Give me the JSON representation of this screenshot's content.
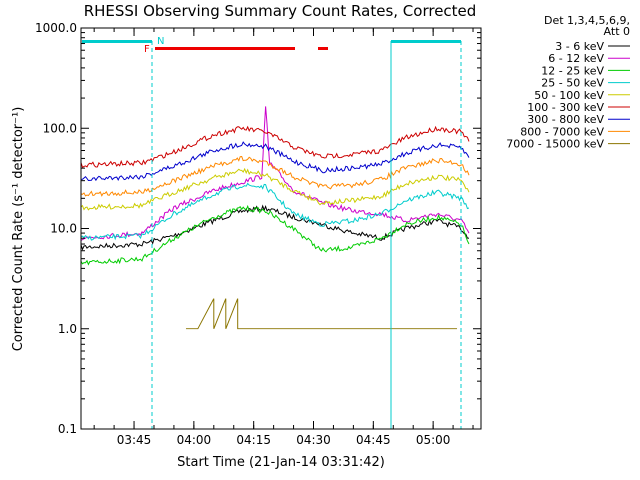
{
  "chart_data": {
    "type": "line",
    "title": "RHESSI Observing Summary Count Rates, Corrected",
    "xlabel": "Start Time (21-Jan-14 03:31:42)",
    "ylabel": "Corrected Count Rate (s⁻¹ detector⁻¹)",
    "y_scale": "log",
    "ylim": [
      0.1,
      1000.0
    ],
    "y_ticks": [
      "0.1",
      "1.0",
      "10.0",
      "100.0",
      "1000.0"
    ],
    "x_range": [
      "03:31:42",
      "05:12:00"
    ],
    "x_ticks": [
      "03:45",
      "04:00",
      "04:15",
      "04:30",
      "04:45",
      "05:00"
    ],
    "legend": {
      "header": [
        "Det 1,3,4,5,6,9,",
        "Att 0"
      ],
      "position": "right"
    },
    "series": [
      {
        "name": "3 - 6 keV",
        "color": "#000000",
        "points": [
          [
            "03:31:42",
            6.5
          ],
          [
            "03:47",
            7
          ],
          [
            "03:55",
            8.5
          ],
          [
            "04:05",
            12
          ],
          [
            "04:12",
            15
          ],
          [
            "04:18",
            16
          ],
          [
            "04:25",
            13
          ],
          [
            "04:32",
            11
          ],
          [
            "04:40",
            9
          ],
          [
            "04:47",
            8
          ],
          [
            "04:53",
            10
          ],
          [
            "05:01",
            12
          ],
          [
            "05:07",
            10
          ],
          [
            "05:09",
            8
          ]
        ]
      },
      {
        "name": "6 - 12 keV",
        "color": "#cc00cc",
        "points": [
          [
            "03:31:42",
            8
          ],
          [
            "03:47",
            9
          ],
          [
            "03:55",
            16
          ],
          [
            "04:05",
            24
          ],
          [
            "04:12",
            29
          ],
          [
            "04:17",
            33
          ],
          [
            "04:18",
            160
          ],
          [
            "04:19",
            45
          ],
          [
            "04:25",
            24
          ],
          [
            "04:32",
            18
          ],
          [
            "04:40",
            15
          ],
          [
            "04:47",
            14
          ],
          [
            "04:53",
            12
          ],
          [
            "05:01",
            14
          ],
          [
            "05:07",
            12
          ],
          [
            "05:09",
            9
          ]
        ]
      },
      {
        "name": "12 - 25 keV",
        "color": "#00cc00",
        "points": [
          [
            "03:31:42",
            4.5
          ],
          [
            "03:47",
            5
          ],
          [
            "03:55",
            8
          ],
          [
            "04:05",
            13
          ],
          [
            "04:12",
            16
          ],
          [
            "04:18",
            15
          ],
          [
            "04:25",
            10
          ],
          [
            "04:32",
            6
          ],
          [
            "04:40",
            6.5
          ],
          [
            "04:47",
            8
          ],
          [
            "04:53",
            11
          ],
          [
            "05:01",
            13
          ],
          [
            "05:07",
            11
          ],
          [
            "05:09",
            7
          ]
        ]
      },
      {
        "name": "25 - 50 keV",
        "color": "#00cccc",
        "points": [
          [
            "03:31:42",
            8
          ],
          [
            "03:47",
            8.5
          ],
          [
            "03:55",
            14
          ],
          [
            "04:05",
            22
          ],
          [
            "04:12",
            27
          ],
          [
            "04:18",
            26
          ],
          [
            "04:25",
            14
          ],
          [
            "04:32",
            11
          ],
          [
            "04:40",
            12
          ],
          [
            "04:47",
            14
          ],
          [
            "04:53",
            19
          ],
          [
            "05:01",
            23
          ],
          [
            "05:07",
            20
          ],
          [
            "05:09",
            16
          ]
        ]
      },
      {
        "name": "50 - 100 keV",
        "color": "#cccc00",
        "points": [
          [
            "03:31:42",
            16
          ],
          [
            "03:47",
            17
          ],
          [
            "03:55",
            23
          ],
          [
            "04:05",
            32
          ],
          [
            "04:12",
            38
          ],
          [
            "04:18",
            34
          ],
          [
            "04:25",
            24
          ],
          [
            "04:32",
            18
          ],
          [
            "04:40",
            19
          ],
          [
            "04:47",
            21
          ],
          [
            "04:53",
            28
          ],
          [
            "05:01",
            33
          ],
          [
            "05:07",
            30
          ],
          [
            "05:09",
            23
          ]
        ]
      },
      {
        "name": "100 - 300 keV",
        "color": "#cc0000",
        "points": [
          [
            "03:31:42",
            43
          ],
          [
            "03:47",
            45
          ],
          [
            "03:55",
            58
          ],
          [
            "04:05",
            86
          ],
          [
            "04:12",
            100
          ],
          [
            "04:18",
            92
          ],
          [
            "04:25",
            65
          ],
          [
            "04:32",
            52
          ],
          [
            "04:40",
            55
          ],
          [
            "04:47",
            60
          ],
          [
            "04:53",
            80
          ],
          [
            "05:01",
            100
          ],
          [
            "05:07",
            92
          ],
          [
            "05:09",
            74
          ]
        ]
      },
      {
        "name": "300 - 800 keV",
        "color": "#0000cc",
        "points": [
          [
            "03:31:42",
            31
          ],
          [
            "03:47",
            33
          ],
          [
            "03:55",
            42
          ],
          [
            "04:05",
            60
          ],
          [
            "04:12",
            70
          ],
          [
            "04:18",
            66
          ],
          [
            "04:25",
            47
          ],
          [
            "04:32",
            38
          ],
          [
            "04:40",
            40
          ],
          [
            "04:47",
            44
          ],
          [
            "04:53",
            56
          ],
          [
            "05:01",
            68
          ],
          [
            "05:07",
            64
          ],
          [
            "05:09",
            51
          ]
        ]
      },
      {
        "name": "800 - 7000 keV",
        "color": "#ff8800",
        "points": [
          [
            "03:31:42",
            22
          ],
          [
            "03:47",
            23
          ],
          [
            "03:55",
            30
          ],
          [
            "04:05",
            42
          ],
          [
            "04:12",
            50
          ],
          [
            "04:18",
            46
          ],
          [
            "04:25",
            33
          ],
          [
            "04:32",
            26
          ],
          [
            "04:40",
            27
          ],
          [
            "04:47",
            31
          ],
          [
            "04:53",
            40
          ],
          [
            "05:01",
            48
          ],
          [
            "05:07",
            44
          ],
          [
            "05:09",
            34
          ]
        ]
      },
      {
        "name": "7000 - 15000 keV",
        "color": "#8b7500",
        "points": [
          [
            "03:58",
            1.0
          ],
          [
            "04:01",
            1.0
          ],
          [
            "04:05",
            2.0
          ],
          [
            "04:05",
            1.0
          ],
          [
            "04:08",
            2.0
          ],
          [
            "04:08",
            1.0
          ],
          [
            "04:11",
            2.0
          ],
          [
            "04:11",
            1.0
          ],
          [
            "04:13",
            1.0
          ],
          [
            "04:20",
            1.0
          ],
          [
            "04:52",
            1.0
          ],
          [
            "05:06",
            1.0
          ]
        ]
      }
    ],
    "annotations": [
      "F",
      "N"
    ]
  }
}
